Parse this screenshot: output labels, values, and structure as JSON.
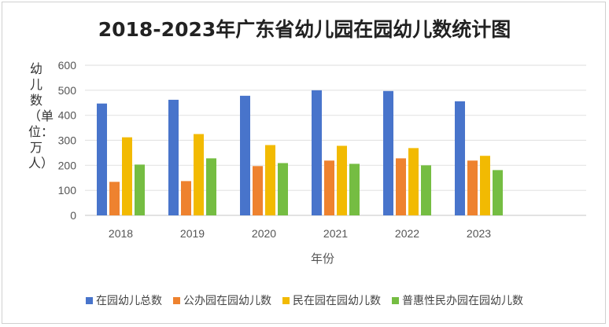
{
  "chart_data": {
    "type": "bar",
    "title": "2018-2023年广东省幼儿园在园幼儿数统计图",
    "xlabel": "年份",
    "ylabel": "幼儿数（单位：万人）",
    "categories": [
      "2018",
      "2019",
      "2020",
      "2021",
      "2022",
      "2023"
    ],
    "ylim": [
      0,
      600
    ],
    "yticks": [
      0,
      100,
      200,
      300,
      400,
      500,
      600
    ],
    "grid": true,
    "legend_position": "bottom",
    "series": [
      {
        "name": "在园幼儿总数",
        "color": "#4874CB",
        "values": [
          447,
          462,
          478,
          500,
          497,
          456
        ]
      },
      {
        "name": "公办园在园幼儿数",
        "color": "#EE822F",
        "values": [
          134,
          137,
          197,
          219,
          228,
          219
        ]
      },
      {
        "name": "民在园在园幼儿数",
        "color": "#F2BA02",
        "values": [
          312,
          325,
          281,
          278,
          269,
          238
        ]
      },
      {
        "name": "普惠性民办园在园幼儿数",
        "color": "#75BD42",
        "values": [
          203,
          228,
          209,
          206,
          200,
          181
        ]
      }
    ]
  }
}
